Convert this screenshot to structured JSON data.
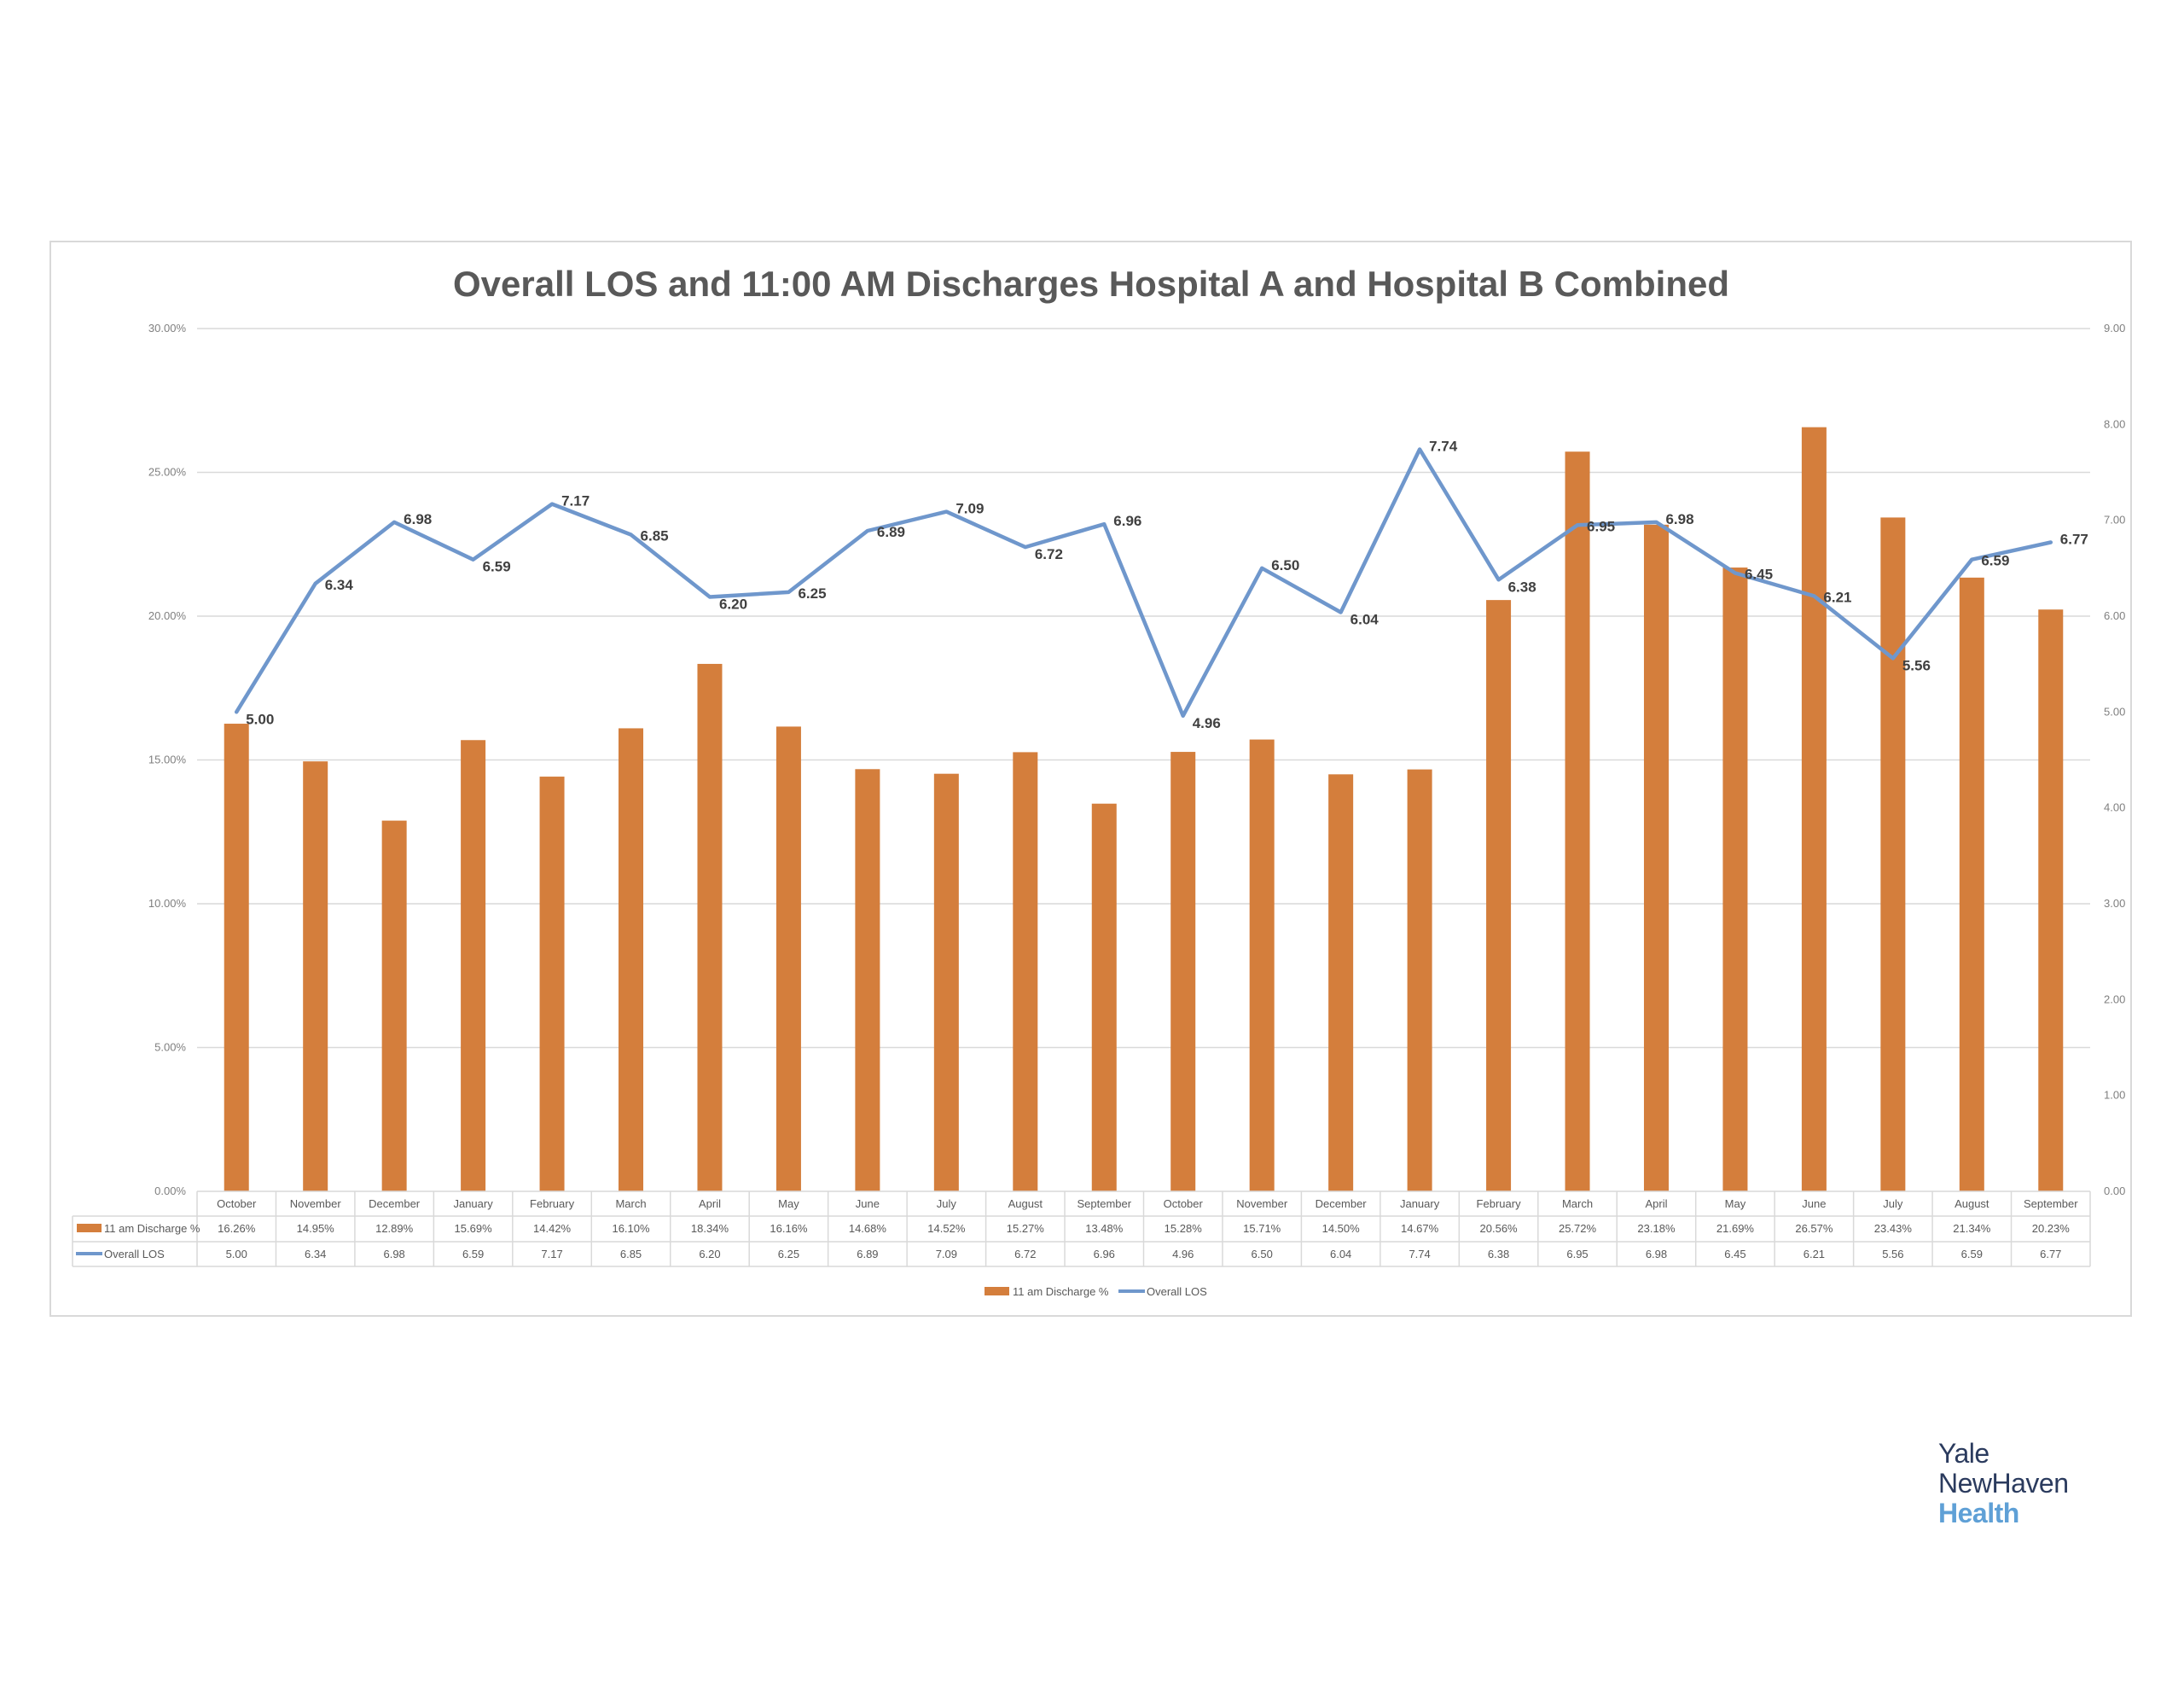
{
  "chart_data": {
    "type": "bar+line",
    "title": "Overall LOS and 11:00 AM Discharges Hospital A and Hospital B Combined",
    "categories": [
      "October",
      "November",
      "December",
      "January",
      "February",
      "March",
      "April",
      "May",
      "June",
      "July",
      "August",
      "September",
      "October",
      "November",
      "December",
      "January",
      "February",
      "March",
      "April",
      "May",
      "June",
      "July",
      "August",
      "September"
    ],
    "series": [
      {
        "name": "11 am Discharge %",
        "type": "bar",
        "axis": "left",
        "color": "#D47E3C",
        "values": [
          16.26,
          14.95,
          12.89,
          15.69,
          14.42,
          16.1,
          18.34,
          16.16,
          14.68,
          14.52,
          15.27,
          13.48,
          15.28,
          15.71,
          14.5,
          14.67,
          20.56,
          25.72,
          23.18,
          21.69,
          26.57,
          23.43,
          21.34,
          20.23
        ],
        "labels": [
          "16.26%",
          "14.95%",
          "12.89%",
          "15.69%",
          "14.42%",
          "16.10%",
          "18.34%",
          "16.16%",
          "14.68%",
          "14.52%",
          "15.27%",
          "13.48%",
          "15.28%",
          "15.71%",
          "14.50%",
          "14.67%",
          "20.56%",
          "25.72%",
          "23.18%",
          "21.69%",
          "26.57%",
          "23.43%",
          "21.34%",
          "20.23%"
        ]
      },
      {
        "name": "Overall LOS",
        "type": "line",
        "axis": "right",
        "color": "#6F97CC",
        "values": [
          5.0,
          6.34,
          6.98,
          6.59,
          7.17,
          6.85,
          6.2,
          6.25,
          6.89,
          7.09,
          6.72,
          6.96,
          4.96,
          6.5,
          6.04,
          7.74,
          6.38,
          6.95,
          6.98,
          6.45,
          6.21,
          5.56,
          6.59,
          6.77
        ],
        "labels": [
          "5.00",
          "6.34",
          "6.98",
          "6.59",
          "7.17",
          "6.85",
          "6.20",
          "6.25",
          "6.89",
          "7.09",
          "6.72",
          "6.96",
          "4.96",
          "6.50",
          "6.04",
          "7.74",
          "6.38",
          "6.95",
          "6.98",
          "6.45",
          "6.21",
          "5.56",
          "6.59",
          "6.77"
        ]
      }
    ],
    "y_left": {
      "range": [
        0,
        30
      ],
      "ticks": [
        0,
        5,
        10,
        15,
        20,
        25,
        30
      ],
      "tick_labels": [
        "0.00%",
        "5.00%",
        "10.00%",
        "15.00%",
        "20.00%",
        "25.00%",
        "30.00%"
      ]
    },
    "y_right": {
      "range": [
        0,
        9
      ],
      "ticks": [
        0,
        1,
        2,
        3,
        4,
        5,
        6,
        7,
        8,
        9
      ],
      "tick_labels": [
        "0.00",
        "1.00",
        "2.00",
        "3.00",
        "4.00",
        "5.00",
        "6.00",
        "7.00",
        "8.00",
        "9.00"
      ]
    },
    "grid": true,
    "data_table": true,
    "legend": {
      "position": "bottom",
      "entries": [
        "11 am Discharge %",
        "Overall LOS"
      ]
    }
  },
  "branding": {
    "logo_lines": [
      "Yale",
      "NewHaven",
      "Health"
    ]
  },
  "colors": {
    "bar": "#D47E3C",
    "line": "#6F97CC",
    "grid": "#D9D9D9",
    "frame": "#D9D9D9"
  }
}
